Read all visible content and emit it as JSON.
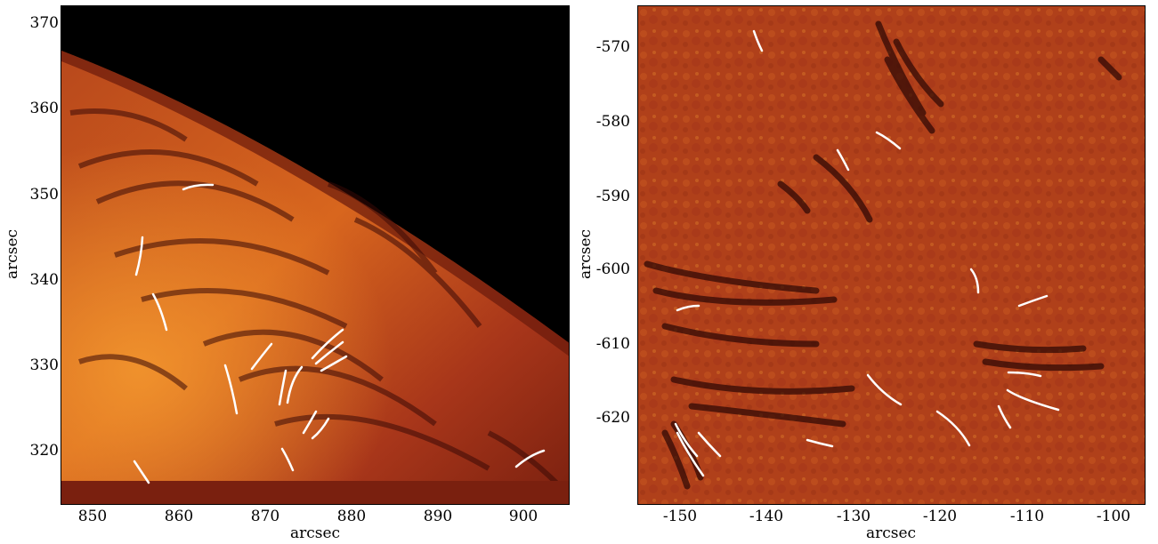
{
  "colors": {
    "limb_dark": "#000000",
    "disk_bright": "#e07a22",
    "disk_mid": "#b0401a",
    "fibril": "#3a0a06",
    "overlay_line": "#ffffff",
    "background": "#ffffff"
  },
  "left_panel": {
    "xlabel": "arcsec",
    "ylabel": "arcsec",
    "xticks": [
      "850",
      "860",
      "870",
      "880",
      "890",
      "900"
    ],
    "yticks": [
      "370",
      "360",
      "350",
      "340",
      "330",
      "320"
    ]
  },
  "right_panel": {
    "xlabel": "arcsec",
    "ylabel": "arcsec",
    "xticks": [
      "-150",
      "-140",
      "-130",
      "-120",
      "-110",
      "-100"
    ],
    "yticks": [
      "-570",
      "-580",
      "-590",
      "-600",
      "-610",
      "-620"
    ]
  }
}
